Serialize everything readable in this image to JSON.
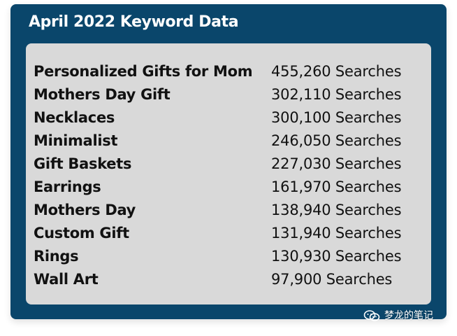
{
  "card": {
    "title": "April 2022 Keyword Data",
    "background_color": "#0a466b",
    "panel_color": "#d9d9d9"
  },
  "keywords": [
    {
      "term": "Personalized Gifts for Mom",
      "searches": "455,260 Searches"
    },
    {
      "term": "Mothers Day Gift",
      "searches": "302,110 Searches"
    },
    {
      "term": "Necklaces",
      "searches": "300,100 Searches"
    },
    {
      "term": "Minimalist",
      "searches": "246,050 Searches"
    },
    {
      "term": "Gift Baskets",
      "searches": "227,030 Searches"
    },
    {
      "term": "Earrings",
      "searches": "161,970 Searches"
    },
    {
      "term": "Mothers Day",
      "searches": "138,940 Searches"
    },
    {
      "term": "Custom Gift",
      "searches": "131,940 Searches"
    },
    {
      "term": "Rings",
      "searches": "130,930 Searches"
    },
    {
      "term": "Wall Art",
      "searches": "97,900 Searches"
    }
  ],
  "watermark": {
    "icon": "wechat-icon",
    "text": "梦龙的笔记"
  }
}
